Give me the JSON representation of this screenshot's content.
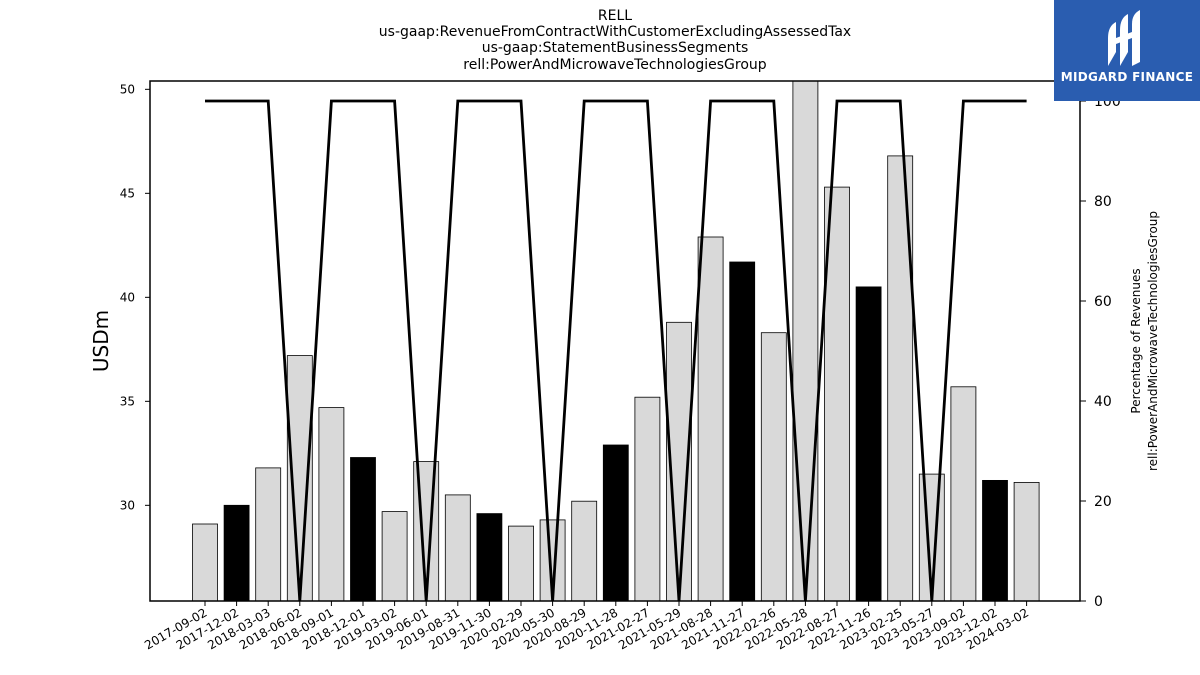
{
  "title_lines": [
    "RELL",
    "us-gaap:RevenueFromContractWithCustomerExcludingAssessedTax",
    "us-gaap:StatementBusinessSegments",
    "rell:PowerAndMicrowaveTechnologiesGroup"
  ],
  "logo": {
    "text": "MIDGARD FINANCE",
    "bg_color": "#2a5db0"
  },
  "chart_data": {
    "type": "bar",
    "categories": [
      "2017-09-02",
      "2017-12-02",
      "2018-03-03",
      "2018-06-02",
      "2018-09-01",
      "2018-12-01",
      "2019-03-02",
      "2019-06-01",
      "2019-08-31",
      "2019-11-30",
      "2020-02-29",
      "2020-05-30",
      "2020-08-29",
      "2020-11-28",
      "2021-02-27",
      "2021-05-29",
      "2021-08-28",
      "2021-11-27",
      "2022-02-26",
      "2022-05-28",
      "2022-08-27",
      "2022-11-26",
      "2023-02-25",
      "2023-05-27",
      "2023-09-02",
      "2023-12-02",
      "2024-03-02"
    ],
    "ylabel": "USDm",
    "ylim": [
      25.4,
      50.4
    ],
    "yticks": [
      30,
      35,
      40,
      45,
      50
    ],
    "y2label_lines": [
      "Percentage of Revenues",
      "rell:PowerAndMicrowaveTechnologiesGroup"
    ],
    "y2lim": [
      0,
      104
    ],
    "y2ticks": [
      0,
      20,
      40,
      60,
      80,
      100
    ],
    "bar_values": [
      29.1,
      30.0,
      31.8,
      37.2,
      34.7,
      32.3,
      29.7,
      32.1,
      30.5,
      29.6,
      29.0,
      29.3,
      30.2,
      32.9,
      35.2,
      38.8,
      42.9,
      41.7,
      38.3,
      50.5,
      45.3,
      40.5,
      46.8,
      31.5,
      35.7,
      31.2,
      31.1
    ],
    "bar_highlight": [
      false,
      true,
      false,
      false,
      false,
      true,
      false,
      false,
      false,
      true,
      false,
      false,
      false,
      true,
      false,
      false,
      false,
      true,
      false,
      false,
      false,
      true,
      false,
      false,
      false,
      true,
      false
    ],
    "line_values": [
      100,
      100,
      100,
      0,
      100,
      100,
      100,
      0,
      100,
      100,
      100,
      0,
      100,
      100,
      100,
      0,
      100,
      100,
      100,
      0,
      100,
      100,
      100,
      0,
      100,
      100,
      100
    ],
    "colors": {
      "bar_light": "#d9d9d9",
      "bar_dark": "#000000",
      "line": "#000000"
    }
  }
}
